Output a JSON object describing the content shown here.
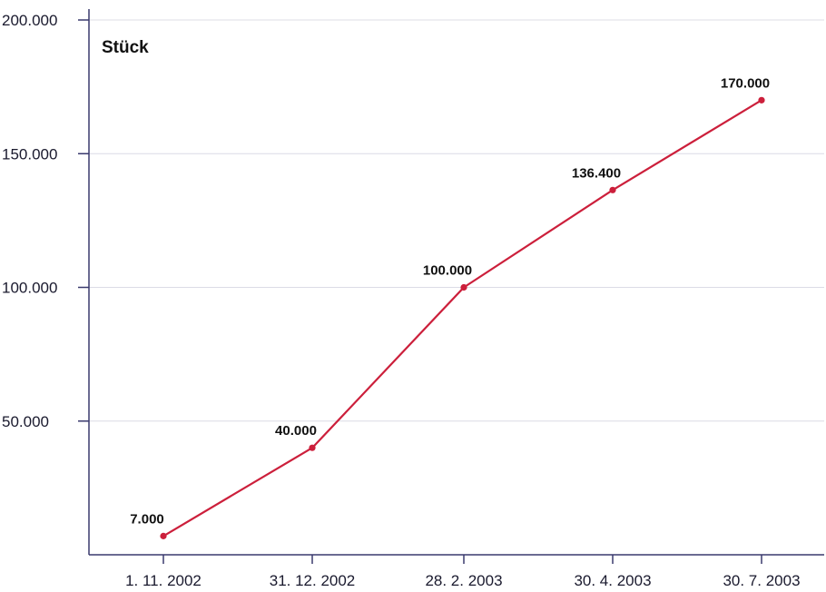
{
  "chart_data": {
    "type": "line",
    "unit_label": "Stück",
    "title": "",
    "xlabel": "",
    "ylabel": "",
    "categories": [
      "1. 11. 2002",
      "31. 12. 2002",
      "28. 2. 2003",
      "30. 4. 2003",
      "30. 7. 2003"
    ],
    "series": [
      {
        "values": [
          7000,
          40000,
          100000,
          136400,
          170000
        ],
        "labels": [
          "7.000",
          "40.000",
          "100.000",
          "136.400",
          "170.000"
        ],
        "color": "#cc1f3b"
      }
    ],
    "ylim": [
      0,
      200000
    ],
    "yticks": [
      50000,
      100000,
      150000,
      200000
    ],
    "ytick_labels": [
      "50.000",
      "100.000",
      "150.000",
      "200.000"
    ],
    "grid": true,
    "axis_color": "#3a3a6e",
    "grid_color": "#dcdce6"
  }
}
